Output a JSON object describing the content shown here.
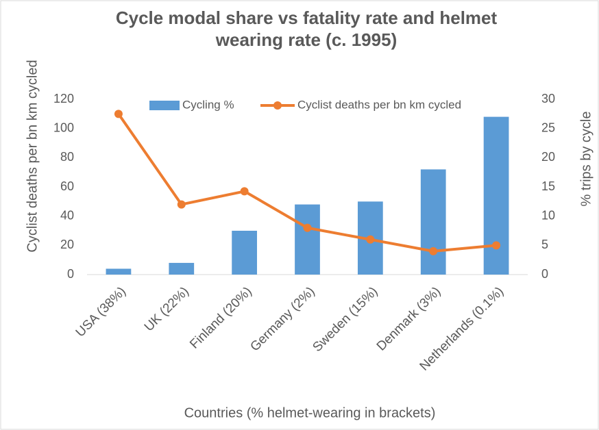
{
  "chart_data": {
    "type": "bar",
    "title": "Cycle modal share vs fatality rate and helmet wearing rate (c. 1995)",
    "xlabel": "Countries (% helmet-wearing in brackets)",
    "ylabel": "Cyclist deaths per bn km cycled",
    "y2label": "% trips by cycle",
    "categories": [
      "USA (38%)",
      "UK (22%)",
      "Finland (20%)",
      "Germany (2%)",
      "Sweden (15%)",
      "Denmark (3%)",
      "Netherlands (0.1%)"
    ],
    "series": [
      {
        "name": "Cycling %",
        "type": "bar",
        "axis": "y2",
        "color": "#5b9bd5",
        "values": [
          1,
          2,
          7.5,
          12,
          12.5,
          18,
          27
        ]
      },
      {
        "name": "Cyclist deaths per bn km cycled",
        "type": "line",
        "axis": "y",
        "color": "#ed7d31",
        "values": [
          110,
          48,
          57,
          32,
          24,
          16,
          20
        ]
      }
    ],
    "ylim": [
      0,
      120
    ],
    "yticks": [
      0,
      20,
      40,
      60,
      80,
      100,
      120
    ],
    "y2lim": [
      0,
      30
    ],
    "y2ticks": [
      0,
      5,
      10,
      15,
      20,
      25,
      30
    ],
    "grid": false,
    "legend": "top"
  }
}
